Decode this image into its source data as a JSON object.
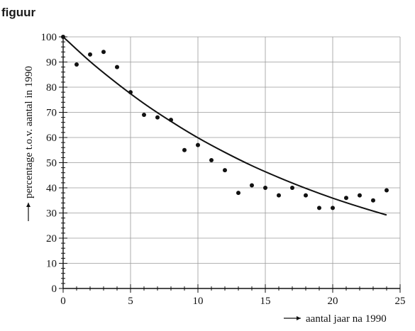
{
  "figure_label": "figuur",
  "chart_data": {
    "type": "scatter",
    "xlabel": "aantal jaar na 1990",
    "ylabel": "percentage t.o.v. aantal in 1990",
    "xlim": [
      0,
      25
    ],
    "ylim": [
      0,
      100
    ],
    "x_ticks": [
      0,
      5,
      10,
      15,
      20,
      25
    ],
    "y_ticks": [
      0,
      10,
      20,
      30,
      40,
      50,
      60,
      70,
      80,
      90,
      100
    ],
    "grid": true,
    "series": [
      {
        "kind": "points",
        "x": [
          0,
          1,
          2,
          3,
          4,
          5,
          6,
          7,
          8,
          9,
          10,
          11,
          12,
          13,
          14,
          15,
          16,
          17,
          18,
          19,
          20,
          21,
          22,
          23,
          24
        ],
        "y": [
          100,
          89,
          93,
          94,
          88,
          78,
          69,
          68,
          67,
          55,
          57,
          51,
          47,
          38,
          41,
          40,
          37,
          40,
          37,
          32,
          32,
          36,
          37,
          35,
          39
        ]
      },
      {
        "kind": "curve",
        "x": [
          0,
          2,
          4,
          6,
          8,
          10,
          12,
          14,
          16,
          18,
          20,
          22,
          24
        ],
        "y": [
          100,
          90.2,
          81.5,
          73.5,
          66.4,
          59.9,
          54.1,
          48.8,
          44.1,
          39.8,
          35.9,
          32.4,
          29.2
        ]
      }
    ]
  }
}
